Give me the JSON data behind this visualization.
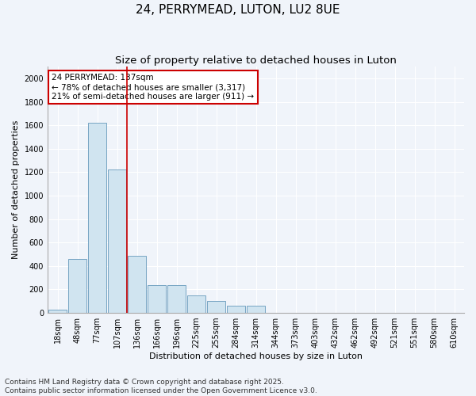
{
  "title": "24, PERRYMEAD, LUTON, LU2 8UE",
  "subtitle": "Size of property relative to detached houses in Luton",
  "xlabel": "Distribution of detached houses by size in Luton",
  "ylabel": "Number of detached properties",
  "categories": [
    "18sqm",
    "48sqm",
    "77sqm",
    "107sqm",
    "136sqm",
    "166sqm",
    "196sqm",
    "225sqm",
    "255sqm",
    "284sqm",
    "314sqm",
    "344sqm",
    "373sqm",
    "403sqm",
    "432sqm",
    "462sqm",
    "492sqm",
    "521sqm",
    "551sqm",
    "580sqm",
    "610sqm"
  ],
  "values": [
    30,
    460,
    1620,
    1220,
    490,
    240,
    240,
    150,
    100,
    60,
    60,
    0,
    0,
    0,
    0,
    0,
    0,
    0,
    0,
    0,
    0
  ],
  "bar_color": "#d0e4f0",
  "bar_edge_color": "#6699bb",
  "vline_x_index": 3,
  "vline_color": "#cc0000",
  "annotation_title": "24 PERRYMEAD: 137sqm",
  "annotation_line1": "← 78% of detached houses are smaller (3,317)",
  "annotation_line2": "21% of semi-detached houses are larger (911) →",
  "annotation_box_color": "#ffffff",
  "annotation_box_edge": "#cc0000",
  "ylim": [
    0,
    2100
  ],
  "yticks": [
    0,
    200,
    400,
    600,
    800,
    1000,
    1200,
    1400,
    1600,
    1800,
    2000
  ],
  "footnote1": "Contains HM Land Registry data © Crown copyright and database right 2025.",
  "footnote2": "Contains public sector information licensed under the Open Government Licence v3.0.",
  "bg_color": "#f0f4fa",
  "plot_bg_color": "#f0f4fa",
  "title_fontsize": 11,
  "subtitle_fontsize": 9.5,
  "axis_label_fontsize": 8,
  "tick_fontsize": 7,
  "annotation_fontsize": 7.5,
  "footnote_fontsize": 6.5
}
